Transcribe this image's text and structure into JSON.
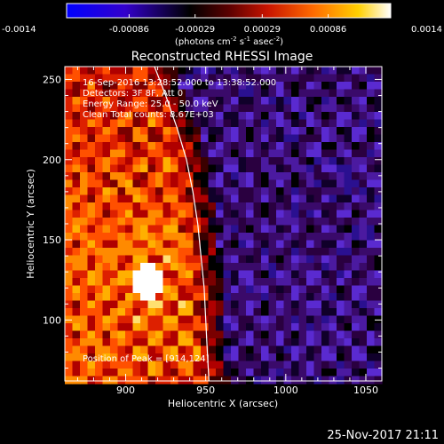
{
  "colorbar": {
    "ticks": [
      "-0.0014",
      "-0.00086",
      "-0.00029",
      "0.00029",
      "0.00086",
      "0.0014"
    ],
    "tick_values": [
      -0.0014,
      -0.00086,
      -0.00029,
      0.00029,
      0.00086,
      0.0014
    ],
    "range": [
      -0.0014,
      0.0014
    ],
    "unit_label_main": "(photons cm",
    "unit_sup1": "-2",
    "unit_label_s": " s",
    "unit_sup2": "-1",
    "unit_label_asec": " asec",
    "unit_sup3": "-2",
    "unit_close": ")",
    "colors": [
      "#0000ff",
      "#3300cc",
      "#000000",
      "#8b0000",
      "#ff3300",
      "#ffa500",
      "#ffffff"
    ]
  },
  "plot": {
    "title": "Reconstructed RHESSI Image",
    "annotations": {
      "time_range": "16-Sep-2016 13:28:52.000 to 13:38:52.000",
      "detectors": "Detectors: 3F 8F, Att 0",
      "energy": "Energy Range: 25.0 - 50.0 keV",
      "clean": "Clean     Total counts: 8.67E+03",
      "peak": "Position of Peak = [914,124]"
    },
    "footer_date": "25-Nov-2017 21:11"
  },
  "chart_data": {
    "type": "heatmap",
    "title": "Reconstructed RHESSI Image",
    "xlabel": "Heliocentric X (arcsec)",
    "ylabel": "Heliocentric Y (arcsec)",
    "xlim": [
      862,
      1060
    ],
    "ylim": [
      62,
      258
    ],
    "x_ticks": [
      900,
      950,
      1000,
      1050
    ],
    "y_ticks": [
      100,
      150,
      200,
      250
    ],
    "peak": [
      914,
      124
    ],
    "limb_curve": [
      [
        918,
        258
      ],
      [
        925,
        240
      ],
      [
        932,
        220
      ],
      [
        938,
        200
      ],
      [
        942,
        180
      ],
      [
        945,
        160
      ],
      [
        947,
        140
      ],
      [
        949,
        120
      ],
      [
        950,
        100
      ],
      [
        951,
        80
      ],
      [
        952,
        62
      ]
    ],
    "colorbar_range": [
      -0.0014,
      0.0014
    ]
  }
}
